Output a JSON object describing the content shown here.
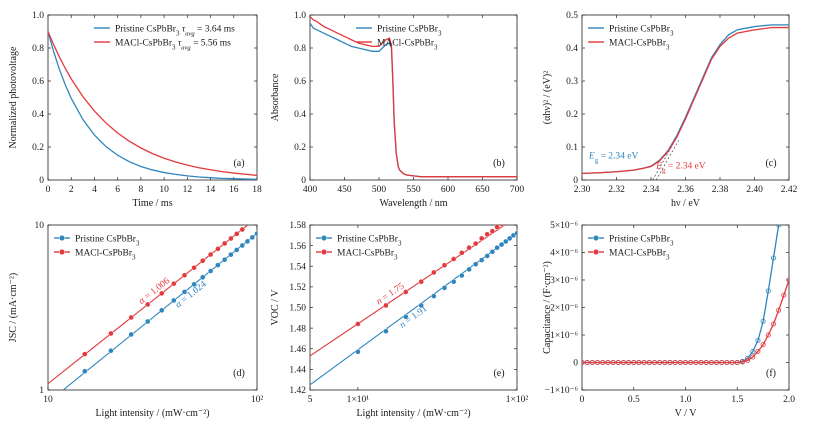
{
  "colors": {
    "pristine": "#2f86bd",
    "macl": "#e3393d",
    "axis": "#222222",
    "extrap": "#555555"
  },
  "chart_data": [
    {
      "id": "a",
      "type": "line",
      "panel_label": "(a)",
      "xlabel": "Time / ms",
      "ylabel": "Normalized photovoltage",
      "xlim": [
        0,
        18
      ],
      "ylim": [
        0,
        1.0
      ],
      "xticks": [
        0,
        2,
        4,
        6,
        8,
        10,
        12,
        14,
        16,
        18
      ],
      "xtick_labels": [
        "0",
        "2",
        "4",
        "6",
        "8",
        "10",
        "12",
        "14",
        "16",
        "18"
      ],
      "yticks": [
        0,
        0.2,
        0.4,
        0.6,
        0.8,
        1.0
      ],
      "ytick_labels": [
        "0",
        "0.2",
        "0.4",
        "0.6",
        "0.8",
        "1.0"
      ],
      "legend_position": "top-right",
      "series": [
        {
          "name": "Pristine CsPbBr3 τavg = 3.64 ms",
          "legend_text": "Pristine CsPbBr",
          "legend_suffix": "τavg = 3.64 ms",
          "color_key": "pristine",
          "x": [
            0,
            0.5,
            1,
            1.5,
            2,
            3,
            4,
            5,
            6,
            7,
            8,
            9,
            10,
            11,
            12,
            13,
            14,
            15,
            16,
            17,
            18
          ],
          "y": [
            0.9,
            0.775,
            0.667,
            0.575,
            0.495,
            0.367,
            0.272,
            0.202,
            0.15,
            0.111,
            0.082,
            0.061,
            0.045,
            0.034,
            0.025,
            0.018,
            0.014,
            0.01,
            0.008,
            0.006,
            0.004
          ]
        },
        {
          "name": "MACl-CsPbBr3 τavg = 5.56 ms",
          "legend_text": "MACl-CsPbBr",
          "legend_suffix": "τavg = 5.56 ms",
          "color_key": "macl",
          "x": [
            0,
            0.5,
            1,
            1.5,
            2,
            3,
            4,
            5,
            6,
            7,
            8,
            9,
            10,
            11,
            12,
            13,
            14,
            15,
            16,
            17,
            18
          ],
          "y": [
            0.9,
            0.818,
            0.743,
            0.675,
            0.613,
            0.506,
            0.418,
            0.345,
            0.285,
            0.235,
            0.194,
            0.16,
            0.132,
            0.109,
            0.09,
            0.074,
            0.062,
            0.051,
            0.042,
            0.035,
            0.028
          ]
        }
      ]
    },
    {
      "id": "b",
      "type": "line",
      "panel_label": "(b)",
      "xlabel": "Wavelength / nm",
      "ylabel": "Absorbance",
      "xlim": [
        400,
        700
      ],
      "ylim": [
        0,
        1.0
      ],
      "xticks": [
        400,
        450,
        500,
        550,
        600,
        650,
        700
      ],
      "xtick_labels": [
        "400",
        "450",
        "500",
        "550",
        "600",
        "650",
        "700"
      ],
      "yticks": [
        0,
        0.2,
        0.4,
        0.6,
        0.8,
        1.0
      ],
      "ytick_labels": [
        "0",
        "0.2",
        "0.4",
        "0.6",
        "0.8",
        "1.0"
      ],
      "legend_position": "top-right",
      "series": [
        {
          "name": "Pristine CsPbBr3",
          "legend_text": "Pristine CsPbBr",
          "color_key": "pristine",
          "x": [
            400,
            405,
            410,
            420,
            430,
            440,
            450,
            460,
            470,
            480,
            490,
            495,
            500,
            505,
            510,
            515,
            518,
            520,
            522,
            525,
            528,
            530,
            535,
            540,
            550,
            560,
            580,
            600,
            620,
            650,
            680,
            700
          ],
          "y": [
            0.95,
            0.92,
            0.91,
            0.89,
            0.87,
            0.85,
            0.83,
            0.81,
            0.8,
            0.79,
            0.78,
            0.78,
            0.78,
            0.8,
            0.82,
            0.83,
            0.8,
            0.6,
            0.35,
            0.16,
            0.08,
            0.06,
            0.04,
            0.03,
            0.025,
            0.02,
            0.02,
            0.02,
            0.02,
            0.02,
            0.02,
            0.02
          ]
        },
        {
          "name": "MACl-CsPbBr3",
          "legend_text": "MACl-CsPbBr",
          "color_key": "macl",
          "x": [
            400,
            405,
            410,
            420,
            430,
            440,
            450,
            460,
            470,
            480,
            490,
            495,
            500,
            505,
            510,
            515,
            518,
            520,
            522,
            525,
            528,
            530,
            535,
            540,
            550,
            560,
            580,
            600,
            620,
            650,
            680,
            700
          ],
          "y": [
            0.99,
            0.97,
            0.96,
            0.93,
            0.91,
            0.89,
            0.87,
            0.85,
            0.83,
            0.82,
            0.81,
            0.81,
            0.81,
            0.83,
            0.85,
            0.86,
            0.82,
            0.62,
            0.36,
            0.16,
            0.08,
            0.06,
            0.04,
            0.03,
            0.025,
            0.02,
            0.02,
            0.02,
            0.02,
            0.02,
            0.02,
            0.02
          ]
        }
      ]
    },
    {
      "id": "c",
      "type": "line",
      "panel_label": "(c)",
      "xlabel": "hν / eV",
      "ylabel": "(αhν)² / (eV)²",
      "xlim": [
        2.3,
        2.42
      ],
      "ylim": [
        0,
        0.5
      ],
      "xticks": [
        2.3,
        2.32,
        2.34,
        2.36,
        2.38,
        2.4,
        2.42
      ],
      "xtick_labels": [
        "2.30",
        "2.32",
        "2.34",
        "2.36",
        "2.38",
        "2.40",
        "2.42"
      ],
      "yticks": [
        0,
        0.1,
        0.2,
        0.3,
        0.4,
        0.5
      ],
      "ytick_labels": [
        "0",
        "0.1",
        "0.2",
        "0.3",
        "0.4",
        "0.5"
      ],
      "legend_position": "top-left",
      "annotations": [
        {
          "text": "Eg = 2.34 eV",
          "main": "E",
          "sub": "g",
          "rest": " = 2.34 eV",
          "color_key": "pristine",
          "x": 2.304,
          "y": 0.065
        },
        {
          "text": "Eg = 2.34 eV",
          "main": "E",
          "sub": "g",
          "rest": " = 2.34 eV",
          "color_key": "macl",
          "x": 2.343,
          "y": 0.035
        }
      ],
      "extrapolation_lines": [
        {
          "x": [
            2.341,
            2.354
          ],
          "y": [
            0.0,
            0.12
          ]
        },
        {
          "x": [
            2.343,
            2.356
          ],
          "y": [
            0.0,
            0.12
          ]
        }
      ],
      "series": [
        {
          "name": "Pristine CsPbBr3",
          "legend_text": "Pristine CsPbBr",
          "color_key": "pristine",
          "x": [
            2.3,
            2.31,
            2.32,
            2.33,
            2.335,
            2.34,
            2.345,
            2.35,
            2.355,
            2.36,
            2.365,
            2.37,
            2.375,
            2.38,
            2.385,
            2.39,
            2.4,
            2.41,
            2.42
          ],
          "y": [
            0.02,
            0.022,
            0.025,
            0.03,
            0.035,
            0.042,
            0.06,
            0.09,
            0.135,
            0.19,
            0.25,
            0.31,
            0.37,
            0.41,
            0.44,
            0.455,
            0.465,
            0.47,
            0.47
          ]
        },
        {
          "name": "MACl-CsPbBr3",
          "legend_text": "MACl-CsPbBr",
          "color_key": "macl",
          "x": [
            2.3,
            2.31,
            2.32,
            2.33,
            2.335,
            2.34,
            2.345,
            2.35,
            2.355,
            2.36,
            2.365,
            2.37,
            2.375,
            2.38,
            2.385,
            2.39,
            2.4,
            2.41,
            2.42
          ],
          "y": [
            0.02,
            0.022,
            0.025,
            0.03,
            0.035,
            0.041,
            0.058,
            0.087,
            0.13,
            0.185,
            0.245,
            0.305,
            0.365,
            0.405,
            0.43,
            0.445,
            0.455,
            0.462,
            0.462
          ]
        }
      ]
    },
    {
      "id": "d",
      "type": "scatter",
      "panel_label": "(d)",
      "xlabel": "Light intensity / (mW·cm⁻²)",
      "ylabel": "JSC / (mA·cm⁻²)",
      "x_scale": "log",
      "y_scale": "log",
      "xlim": [
        10,
        100
      ],
      "ylim": [
        1,
        10
      ],
      "xticks": [
        10,
        100
      ],
      "xtick_labels": [
        "10",
        "10²"
      ],
      "yticks": [
        1,
        10
      ],
      "ytick_labels": [
        "1",
        "10"
      ],
      "legend_position": "top-left",
      "annotations": [
        {
          "text": "α = 1.006",
          "sym": "α",
          "rest": " = 1.006",
          "color_key": "macl"
        },
        {
          "text": "α = 1.024",
          "sym": "α",
          "rest": " = 1.024",
          "color_key": "pristine"
        }
      ],
      "series": [
        {
          "name": "Pristine CsPbBr3",
          "legend_text": "Pristine CsPbBr",
          "color_key": "pristine",
          "slope": 1.024,
          "fit_x": [
            10,
            100
          ],
          "x": [
            15,
            20,
            25,
            30,
            35,
            40,
            45,
            50,
            55,
            60,
            65,
            70,
            75,
            80,
            85,
            90,
            95,
            100
          ],
          "y": [
            1.3,
            1.73,
            2.17,
            2.6,
            3.04,
            3.49,
            3.93,
            4.37,
            4.82,
            5.26,
            5.71,
            6.16,
            6.61,
            7.06,
            7.51,
            7.96,
            8.41,
            8.87
          ]
        },
        {
          "name": "MACl-CsPbBr3",
          "legend_text": "MACl-CsPbBr",
          "color_key": "macl",
          "slope": 1.006,
          "fit_x": [
            10,
            100
          ],
          "x": [
            15,
            20,
            25,
            30,
            35,
            40,
            45,
            50,
            55,
            60,
            65,
            70,
            75,
            80,
            85
          ],
          "y": [
            1.65,
            2.2,
            2.75,
            3.3,
            3.85,
            4.41,
            4.96,
            5.51,
            6.07,
            6.62,
            7.17,
            7.73,
            8.28,
            8.84,
            9.39
          ]
        }
      ]
    },
    {
      "id": "e",
      "type": "scatter",
      "panel_label": "(e)",
      "xlabel": "Light intensity / (mW·cm⁻²)",
      "ylabel": "VOC / V",
      "x_scale": "log",
      "xlim": [
        5,
        100
      ],
      "ylim": [
        1.42,
        1.58
      ],
      "xticks": [
        5,
        10,
        100
      ],
      "xtick_labels": [
        "5",
        "1×10¹",
        "1×10²"
      ],
      "yticks": [
        1.42,
        1.44,
        1.46,
        1.48,
        1.5,
        1.52,
        1.54,
        1.56,
        1.58
      ],
      "ytick_labels": [
        "1.42",
        "1.44",
        "1.46",
        "1.48",
        "1.50",
        "1.52",
        "1.54",
        "1.56",
        "1.58"
      ],
      "legend_position": "top-left",
      "annotations": [
        {
          "text": "n = 1.75",
          "sym": "n",
          "rest": " = 1.75",
          "color_key": "macl"
        },
        {
          "text": "n = 1.91",
          "sym": "n",
          "rest": " = 1.91",
          "color_key": "pristine"
        }
      ],
      "series": [
        {
          "name": "Pristine CsPbBr3",
          "legend_text": "Pristine CsPbBr",
          "color_key": "pristine",
          "fit_x": [
            5,
            100
          ],
          "fit_y": [
            1.425,
            1.572
          ],
          "x": [
            10,
            15,
            20,
            25,
            30,
            35,
            40,
            45,
            50,
            55,
            60,
            65,
            70,
            75,
            80,
            85,
            90,
            95,
            100
          ],
          "y": [
            1.457,
            1.477,
            1.491,
            1.502,
            1.511,
            1.519,
            1.525,
            1.531,
            1.537,
            1.542,
            1.546,
            1.55,
            1.554,
            1.558,
            1.561,
            1.564,
            1.567,
            1.57,
            1.572
          ]
        },
        {
          "name": "MACl-CsPbBr3",
          "legend_text": "MACl-CsPbBr",
          "color_key": "macl",
          "fit_x": [
            5,
            100
          ],
          "fit_y": [
            1.453,
            1.588
          ],
          "x": [
            10,
            15,
            20,
            25,
            30,
            35,
            40,
            45,
            50,
            55,
            60,
            65,
            70,
            75,
            80
          ],
          "y": [
            1.484,
            1.502,
            1.515,
            1.525,
            1.534,
            1.541,
            1.547,
            1.553,
            1.558,
            1.562,
            1.567,
            1.571,
            1.574,
            1.578,
            1.581
          ]
        }
      ]
    },
    {
      "id": "f",
      "type": "line",
      "panel_label": "(f)",
      "xlabel": "V / V",
      "ylabel": "Capacitance / (F·cm⁻²)",
      "xlim": [
        0,
        2.0
      ],
      "ylim": [
        -1e-06,
        5e-06
      ],
      "xticks": [
        0,
        0.5,
        1.0,
        1.5,
        2.0
      ],
      "xtick_labels": [
        "0",
        "0.5",
        "1.0",
        "1.5",
        "2.0"
      ],
      "yticks": [
        -1e-06,
        0,
        1e-06,
        2e-06,
        3e-06,
        4e-06,
        5e-06
      ],
      "ytick_labels": [
        "−1×10⁻⁶",
        "0",
        "1×10⁻⁶",
        "2×10⁻⁶",
        "3×10⁻⁶",
        "4×10⁻⁶",
        "5×10⁻⁶"
      ],
      "legend_position": "top-left",
      "series": [
        {
          "name": "Pristine CsPbBr3",
          "legend_text": "Pristine CsPbBr",
          "color_key": "pristine",
          "x": [
            0,
            0.05,
            0.1,
            0.15,
            0.2,
            0.25,
            0.3,
            0.35,
            0.4,
            0.45,
            0.5,
            0.55,
            0.6,
            0.65,
            0.7,
            0.75,
            0.8,
            0.85,
            0.9,
            0.95,
            1.0,
            1.05,
            1.1,
            1.15,
            1.2,
            1.25,
            1.3,
            1.35,
            1.4,
            1.45,
            1.5,
            1.55,
            1.6,
            1.65,
            1.7,
            1.75,
            1.8,
            1.85,
            1.9
          ],
          "y": [
            0,
            0,
            0,
            0,
            0,
            0,
            0,
            0,
            0,
            0,
            0,
            0,
            0,
            0,
            0,
            0,
            0,
            0,
            0,
            0,
            0,
            0,
            0,
            0,
            0,
            0,
            0,
            0,
            0,
            0,
            0,
            4e-08,
            1.5e-07,
            4e-07,
            8e-07,
            1.5e-06,
            2.6e-06,
            3.8e-06,
            5e-06
          ]
        },
        {
          "name": "MACl-CsPbBr3",
          "legend_text": "MACl-CsPbBr",
          "color_key": "macl",
          "x": [
            0,
            0.05,
            0.1,
            0.15,
            0.2,
            0.25,
            0.3,
            0.35,
            0.4,
            0.45,
            0.5,
            0.55,
            0.6,
            0.65,
            0.7,
            0.75,
            0.8,
            0.85,
            0.9,
            0.95,
            1.0,
            1.05,
            1.1,
            1.15,
            1.2,
            1.25,
            1.3,
            1.35,
            1.4,
            1.45,
            1.5,
            1.55,
            1.6,
            1.65,
            1.7,
            1.75,
            1.8,
            1.85,
            1.9,
            1.95,
            2.0
          ],
          "y": [
            0,
            0,
            0,
            0,
            0,
            0,
            0,
            0,
            0,
            0,
            0,
            0,
            0,
            0,
            0,
            0,
            0,
            0,
            0,
            0,
            0,
            0,
            0,
            0,
            0,
            0,
            0,
            0,
            0,
            0,
            0,
            2e-08,
            8e-08,
            2e-07,
            4e-07,
            6.5e-07,
            1e-06,
            1.4e-06,
            1.9e-06,
            2.45e-06,
            3e-06
          ]
        }
      ]
    }
  ]
}
